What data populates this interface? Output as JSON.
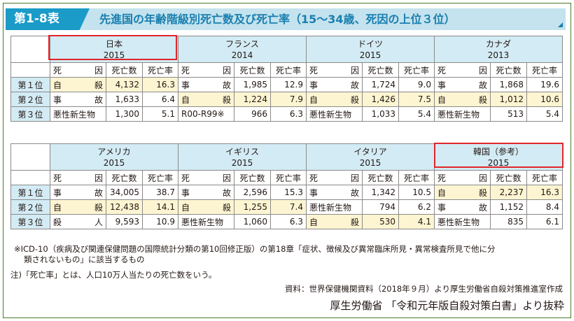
{
  "header": {
    "label": "第1-8表",
    "title": "先進国の年齢階級別死亡数及び死亡率（15～34歳、死因の上位３位）"
  },
  "columns": {
    "cause": "死　　因",
    "deaths": "死亡数",
    "rate": "死亡率"
  },
  "ranks": [
    "第１位",
    "第２位",
    "第３位"
  ],
  "table1": {
    "countries": [
      {
        "name": "日本",
        "year": "2015",
        "rows": [
          {
            "cause": "自殺",
            "deaths": "4,132",
            "rate": "16.3",
            "suicide": true
          },
          {
            "cause": "事故",
            "deaths": "1,633",
            "rate": "6.4",
            "suicide": false
          },
          {
            "cause": "悪性新生物",
            "deaths": "1,300",
            "rate": "5.1",
            "suicide": false
          }
        ]
      },
      {
        "name": "フランス",
        "year": "2014",
        "rows": [
          {
            "cause": "事故",
            "deaths": "1,985",
            "rate": "12.9",
            "suicide": false
          },
          {
            "cause": "自殺",
            "deaths": "1,224",
            "rate": "7.9",
            "suicide": true
          },
          {
            "cause": "R00-R99※",
            "deaths": "966",
            "rate": "6.3",
            "suicide": false
          }
        ]
      },
      {
        "name": "ドイツ",
        "year": "2015",
        "rows": [
          {
            "cause": "事故",
            "deaths": "1,724",
            "rate": "9.0",
            "suicide": false
          },
          {
            "cause": "自殺",
            "deaths": "1,426",
            "rate": "7.5",
            "suicide": true
          },
          {
            "cause": "悪性新生物",
            "deaths": "1,033",
            "rate": "5.4",
            "suicide": false
          }
        ]
      },
      {
        "name": "カナダ",
        "year": "2013",
        "rows": [
          {
            "cause": "事故",
            "deaths": "1,868",
            "rate": "19.6",
            "suicide": false
          },
          {
            "cause": "自殺",
            "deaths": "1,012",
            "rate": "10.6",
            "suicide": true
          },
          {
            "cause": "悪性新生物",
            "deaths": "513",
            "rate": "5.4",
            "suicide": false
          }
        ]
      }
    ]
  },
  "table2": {
    "countries": [
      {
        "name": "アメリカ",
        "year": "2015",
        "rows": [
          {
            "cause": "事故",
            "deaths": "34,005",
            "rate": "38.7",
            "suicide": false
          },
          {
            "cause": "自殺",
            "deaths": "12,438",
            "rate": "14.1",
            "suicide": true
          },
          {
            "cause": "殺人",
            "deaths": "9,593",
            "rate": "10.9",
            "suicide": false
          }
        ]
      },
      {
        "name": "イギリス",
        "year": "2015",
        "rows": [
          {
            "cause": "事故",
            "deaths": "2,596",
            "rate": "15.3",
            "suicide": false
          },
          {
            "cause": "自殺",
            "deaths": "1,255",
            "rate": "7.4",
            "suicide": true
          },
          {
            "cause": "悪性新生物",
            "deaths": "1,060",
            "rate": "6.3",
            "suicide": false
          }
        ]
      },
      {
        "name": "イタリア",
        "year": "2015",
        "rows": [
          {
            "cause": "事故",
            "deaths": "1,342",
            "rate": "10.5",
            "suicide": false
          },
          {
            "cause": "悪性新生物",
            "deaths": "794",
            "rate": "6.2",
            "suicide": false
          },
          {
            "cause": "自殺",
            "deaths": "530",
            "rate": "4.1",
            "suicide": true
          }
        ]
      },
      {
        "name": "韓国（参考）",
        "year": "2015",
        "rows": [
          {
            "cause": "自殺",
            "deaths": "2,237",
            "rate": "16.3",
            "suicide": true
          },
          {
            "cause": "事故",
            "deaths": "1,152",
            "rate": "8.4",
            "suicide": false
          },
          {
            "cause": "悪性新生物",
            "deaths": "835",
            "rate": "6.1",
            "suicide": false
          }
        ]
      }
    ]
  },
  "notes": {
    "note1_line1": "※ICD-10（疾病及び関連保健問題の国際統計分類の第10回修正版）の第18章「症状、徴候及び異常臨床所見・異常検査所見で他に分",
    "note1_line2": "類されないもの」に該当するもの",
    "note2": "注)「死亡率」とは、人口10万人当たりの死亡数をいう。",
    "source": "資料：世界保健機関資料（2018年９月）より厚生労働省自殺対策推進室作成"
  },
  "footer": "厚生労働省 「令和元年版自殺対策白書」より抜粋",
  "colors": {
    "header_badge": "#1a9bc8",
    "header_band": "#c4e3ee",
    "header_title": "#1a7fb0",
    "country_cell": "#d3ebf4",
    "suicide_cell": "#fdf5d2",
    "highlight_box": "#e0262b"
  }
}
